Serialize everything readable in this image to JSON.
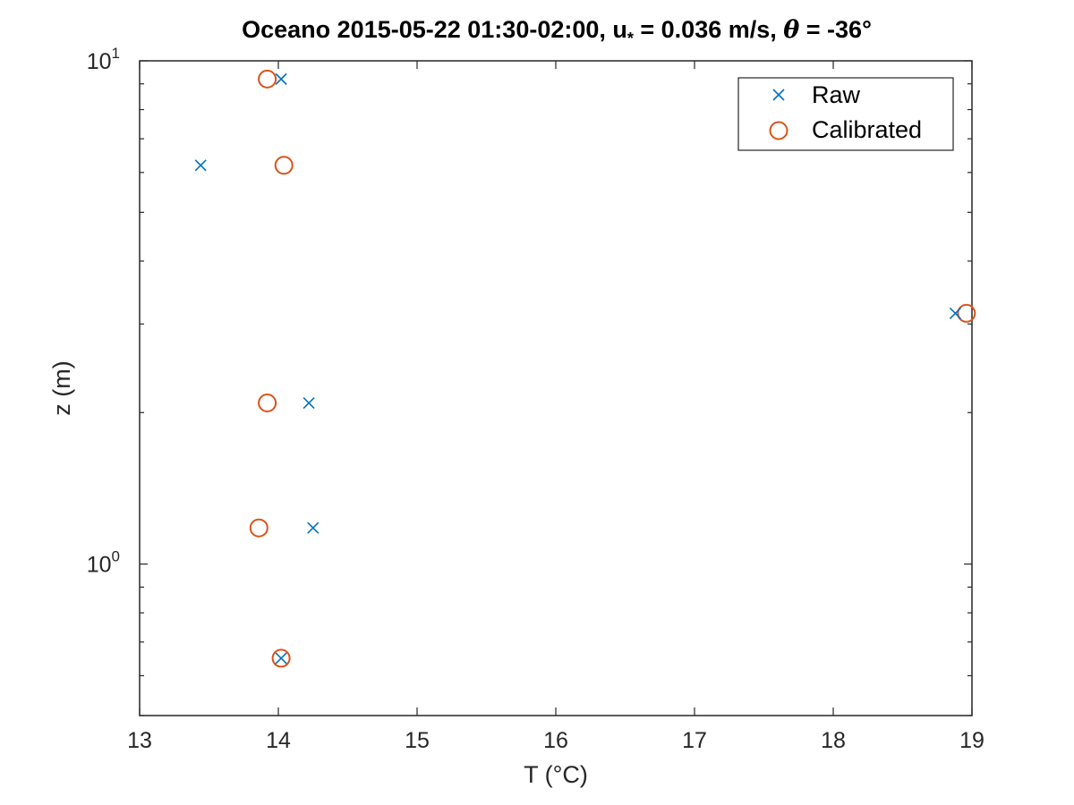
{
  "chart_data": {
    "type": "scatter",
    "title": {
      "prefix": "Oceano 2015-05-22 01:30-02:00, u",
      "subscript": "*",
      "middle": " = 0.036 m/s, ",
      "theta": "θ",
      "suffix": " = -36°"
    },
    "xlabel": "T (°C)",
    "ylabel": "z (m)",
    "xlim": [
      13,
      19
    ],
    "ylim": [
      0.5,
      10
    ],
    "yscale": "log",
    "grid": false,
    "legend_position": "top-right",
    "xticks": [
      "13",
      "14",
      "15",
      "16",
      "17",
      "18",
      "19"
    ],
    "yticks": [
      {
        "value": 1,
        "base": "10",
        "exp": "0"
      },
      {
        "value": 10,
        "base": "10",
        "exp": "1"
      }
    ],
    "series": [
      {
        "name": "Raw",
        "marker": "x",
        "color": "#0072BD",
        "points": [
          {
            "x": 14.02,
            "z": 9.2
          },
          {
            "x": 13.44,
            "z": 6.2
          },
          {
            "x": 18.88,
            "z": 3.15
          },
          {
            "x": 14.22,
            "z": 2.09
          },
          {
            "x": 14.25,
            "z": 1.18
          },
          {
            "x": 14.02,
            "z": 0.65
          }
        ]
      },
      {
        "name": "Calibrated",
        "marker": "o",
        "color": "#D95319",
        "points": [
          {
            "x": 13.92,
            "z": 9.2
          },
          {
            "x": 14.04,
            "z": 6.2
          },
          {
            "x": 18.96,
            "z": 3.15
          },
          {
            "x": 13.92,
            "z": 2.09
          },
          {
            "x": 13.86,
            "z": 1.18
          },
          {
            "x": 14.02,
            "z": 0.65
          }
        ]
      }
    ]
  }
}
